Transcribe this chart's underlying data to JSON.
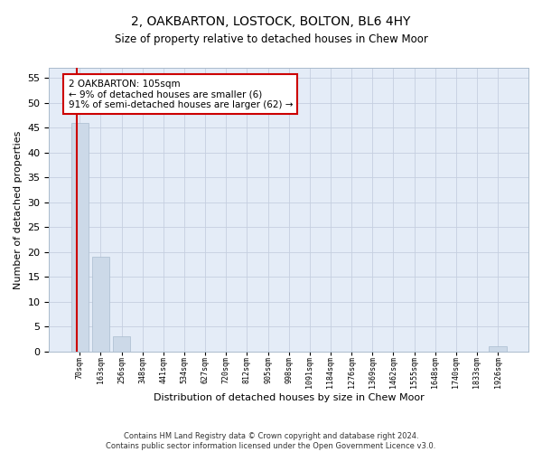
{
  "title": "2, OAKBARTON, LOSTOCK, BOLTON, BL6 4HY",
  "subtitle": "Size of property relative to detached houses in Chew Moor",
  "xlabel": "Distribution of detached houses by size in Chew Moor",
  "ylabel": "Number of detached properties",
  "footer_line1": "Contains HM Land Registry data © Crown copyright and database right 2024.",
  "footer_line2": "Contains public sector information licensed under the Open Government Licence v3.0.",
  "bin_labels": [
    "70sqm",
    "163sqm",
    "256sqm",
    "348sqm",
    "441sqm",
    "534sqm",
    "627sqm",
    "720sqm",
    "812sqm",
    "905sqm",
    "998sqm",
    "1091sqm",
    "1184sqm",
    "1276sqm",
    "1369sqm",
    "1462sqm",
    "1555sqm",
    "1648sqm",
    "1740sqm",
    "1833sqm",
    "1926sqm"
  ],
  "bar_values": [
    46,
    19,
    3,
    0,
    0,
    0,
    0,
    0,
    0,
    0,
    0,
    0,
    0,
    0,
    0,
    0,
    0,
    0,
    0,
    0,
    1
  ],
  "bar_color": "#ccd9e8",
  "bar_edgecolor": "#aabcce",
  "grid_color": "#c5cfe0",
  "background_color": "#e4ecf7",
  "annotation_text": "2 OAKBARTON: 105sqm\n← 9% of detached houses are smaller (6)\n91% of semi-detached houses are larger (62) →",
  "annotation_box_facecolor": "#ffffff",
  "annotation_box_edgecolor": "#cc0000",
  "vline_color": "#cc0000",
  "ylim": [
    0,
    57
  ],
  "yticks": [
    0,
    5,
    10,
    15,
    20,
    25,
    30,
    35,
    40,
    45,
    50,
    55
  ]
}
